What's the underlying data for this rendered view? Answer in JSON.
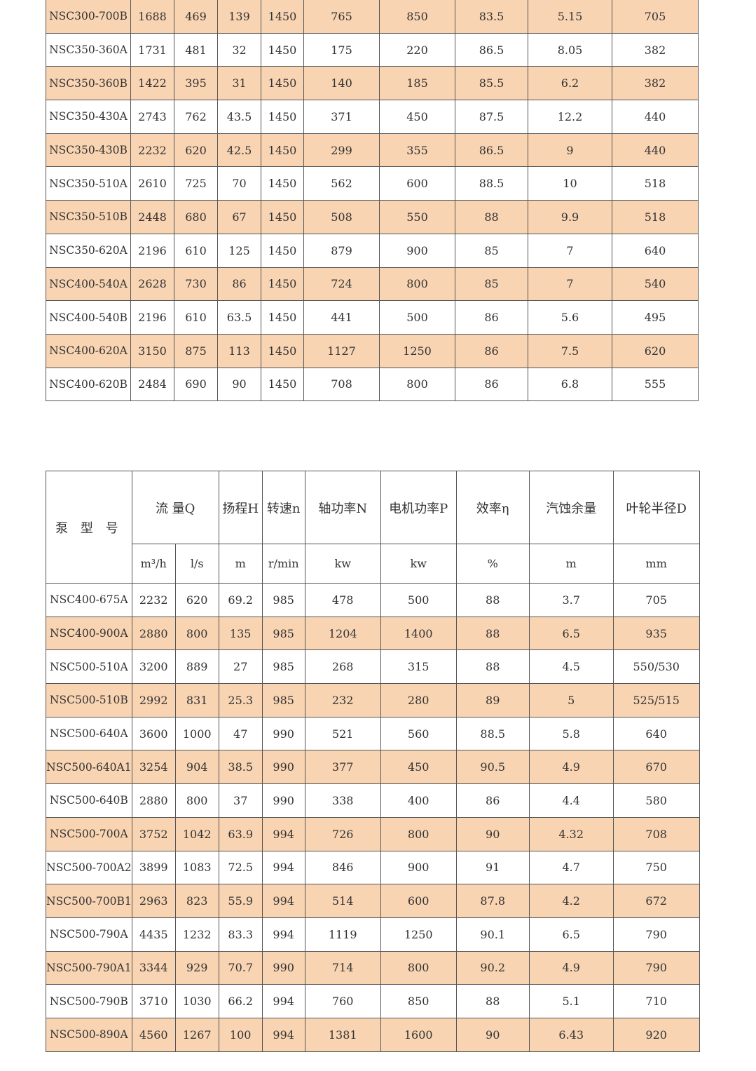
{
  "colors": {
    "stripe": "#f8d4b2",
    "row": "#ffffff"
  },
  "table1": {
    "rows": [
      [
        "NSC300-700B",
        "1688",
        "469",
        "139",
        "1450",
        "765",
        "850",
        "83.5",
        "5.15",
        "705"
      ],
      [
        "NSC350-360A",
        "1731",
        "481",
        "32",
        "1450",
        "175",
        "220",
        "86.5",
        "8.05",
        "382"
      ],
      [
        "NSC350-360B",
        "1422",
        "395",
        "31",
        "1450",
        "140",
        "185",
        "85.5",
        "6.2",
        "382"
      ],
      [
        "NSC350-430A",
        "2743",
        "762",
        "43.5",
        "1450",
        "371",
        "450",
        "87.5",
        "12.2",
        "440"
      ],
      [
        "NSC350-430B",
        "2232",
        "620",
        "42.5",
        "1450",
        "299",
        "355",
        "86.5",
        "9",
        "440"
      ],
      [
        "NSC350-510A",
        "2610",
        "725",
        "70",
        "1450",
        "562",
        "600",
        "88.5",
        "10",
        "518"
      ],
      [
        "NSC350-510B",
        "2448",
        "680",
        "67",
        "1450",
        "508",
        "550",
        "88",
        "9.9",
        "518"
      ],
      [
        "NSC350-620A",
        "2196",
        "610",
        "125",
        "1450",
        "879",
        "900",
        "85",
        "7",
        "640"
      ],
      [
        "NSC400-540A",
        "2628",
        "730",
        "86",
        "1450",
        "724",
        "800",
        "85",
        "7",
        "540"
      ],
      [
        "NSC400-540B",
        "2196",
        "610",
        "63.5",
        "1450",
        "441",
        "500",
        "86",
        "5.6",
        "495"
      ],
      [
        "NSC400-620A",
        "3150",
        "875",
        "113",
        "1450",
        "1127",
        "1250",
        "86",
        "7.5",
        "620"
      ],
      [
        "NSC400-620B",
        "2484",
        "690",
        "90",
        "1450",
        "708",
        "800",
        "86",
        "6.8",
        "555"
      ]
    ]
  },
  "table2": {
    "header": {
      "model": "泵 型 号",
      "flow": "流 量Q",
      "head": "扬程H",
      "speed": "转速n",
      "shaft_power": "轴功率N",
      "motor_power": "电机功率P",
      "efficiency": "效率η",
      "npsh": "汽蚀余量",
      "impeller": "叶轮半径D"
    },
    "units": [
      "m³/h",
      "l/s",
      "m",
      "r/min",
      "kw",
      "kw",
      "%",
      "m",
      "mm"
    ],
    "rows": [
      [
        "NSC400-675A",
        "2232",
        "620",
        "69.2",
        "985",
        "478",
        "500",
        "88",
        "3.7",
        "705"
      ],
      [
        "NSC400-900A",
        "2880",
        "800",
        "135",
        "985",
        "1204",
        "1400",
        "88",
        "6.5",
        "935"
      ],
      [
        "NSC500-510A",
        "3200",
        "889",
        "27",
        "985",
        "268",
        "315",
        "88",
        "4.5",
        "550/530"
      ],
      [
        "NSC500-510B",
        "2992",
        "831",
        "25.3",
        "985",
        "232",
        "280",
        "89",
        "5",
        "525/515"
      ],
      [
        "NSC500-640A",
        "3600",
        "1000",
        "47",
        "990",
        "521",
        "560",
        "88.5",
        "5.8",
        "640"
      ],
      [
        "NSC500-640A1",
        "3254",
        "904",
        "38.5",
        "990",
        "377",
        "450",
        "90.5",
        "4.9",
        "670"
      ],
      [
        "NSC500-640B",
        "2880",
        "800",
        "37",
        "990",
        "338",
        "400",
        "86",
        "4.4",
        "580"
      ],
      [
        "NSC500-700A",
        "3752",
        "1042",
        "63.9",
        "994",
        "726",
        "800",
        "90",
        "4.32",
        "708"
      ],
      [
        "NSC500-700A2",
        "3899",
        "1083",
        "72.5",
        "994",
        "846",
        "900",
        "91",
        "4.7",
        "750"
      ],
      [
        "NSC500-700B1",
        "2963",
        "823",
        "55.9",
        "994",
        "514",
        "600",
        "87.8",
        "4.2",
        "672"
      ],
      [
        "NSC500-790A",
        "4435",
        "1232",
        "83.3",
        "994",
        "1119",
        "1250",
        "90.1",
        "6.5",
        "790"
      ],
      [
        "NSC500-790A1",
        "3344",
        "929",
        "70.7",
        "990",
        "714",
        "800",
        "90.2",
        "4.9",
        "790"
      ],
      [
        "NSC500-790B",
        "3710",
        "1030",
        "66.2",
        "994",
        "760",
        "850",
        "88",
        "5.1",
        "710"
      ],
      [
        "NSC500-890A",
        "4560",
        "1267",
        "100",
        "994",
        "1381",
        "1600",
        "90",
        "6.43",
        "920"
      ]
    ]
  }
}
